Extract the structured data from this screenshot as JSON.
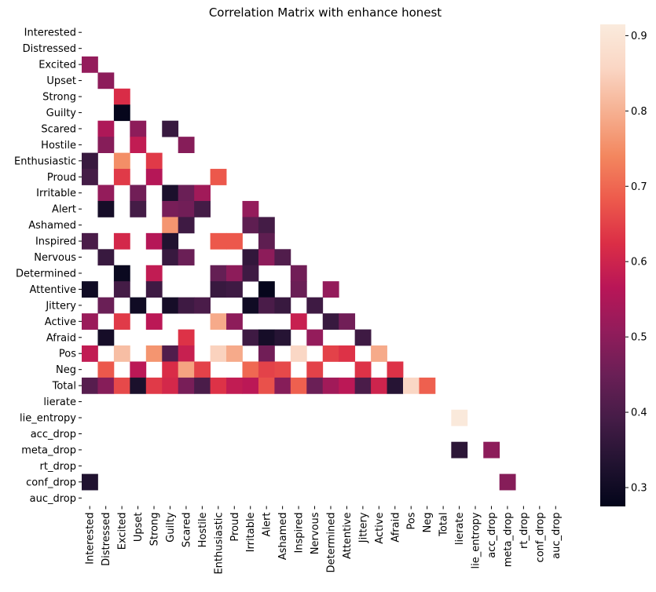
{
  "chart_data": {
    "type": "heatmap",
    "title": "Correlation Matrix with enhance honest",
    "labels": [
      "Interested",
      "Distressed",
      "Excited",
      "Upset",
      "Strong",
      "Guilty",
      "Scared",
      "Hostile",
      "Enthusiastic",
      "Proud",
      "Irritable",
      "Alert",
      "Ashamed",
      "Inspired",
      "Nervous",
      "Determined",
      "Attentive",
      "Jittery",
      "Active",
      "Afraid",
      "Pos",
      "Neg",
      "Total",
      "lierate",
      "lie_entropy",
      "acc_drop",
      "meta_drop",
      "rt_drop",
      "conf_drop",
      "auc_drop"
    ],
    "colorbar": {
      "min": 0.275,
      "max": 0.915,
      "ticks": [
        0.3,
        0.4,
        0.5,
        0.6,
        0.7,
        0.8,
        0.9
      ],
      "tick_labels": [
        "0.3",
        "0.4",
        "0.5",
        "0.6",
        "0.7",
        "0.8",
        "0.9"
      ],
      "colormap": "rocket",
      "stops": [
        "#03051a",
        "#221331",
        "#451c47",
        "#6a1f56",
        "#921c5b",
        "#b91657",
        "#db2e46",
        "#ed5a4c",
        "#f3875f",
        "#f6b091",
        "#fad6c4",
        "#faebdd"
      ]
    },
    "mask": "upper-triangle-and-diagonal",
    "cells": [
      [
        2,
        0,
        0.51
      ],
      [
        3,
        1,
        0.5
      ],
      [
        4,
        2,
        0.62
      ],
      [
        5,
        2,
        0.28
      ],
      [
        6,
        1,
        0.55
      ],
      [
        6,
        3,
        0.5
      ],
      [
        6,
        5,
        0.37
      ],
      [
        7,
        1,
        0.49
      ],
      [
        7,
        3,
        0.58
      ],
      [
        7,
        6,
        0.49
      ],
      [
        8,
        0,
        0.37
      ],
      [
        8,
        2,
        0.75
      ],
      [
        8,
        4,
        0.64
      ],
      [
        9,
        0,
        0.39
      ],
      [
        9,
        2,
        0.64
      ],
      [
        9,
        4,
        0.56
      ],
      [
        9,
        8,
        0.68
      ],
      [
        10,
        1,
        0.51
      ],
      [
        10,
        3,
        0.46
      ],
      [
        10,
        5,
        0.32
      ],
      [
        10,
        6,
        0.45
      ],
      [
        10,
        7,
        0.53
      ],
      [
        11,
        1,
        0.31
      ],
      [
        11,
        3,
        0.39
      ],
      [
        11,
        5,
        0.47
      ],
      [
        11,
        6,
        0.46
      ],
      [
        11,
        7,
        0.39
      ],
      [
        11,
        10,
        0.51
      ],
      [
        12,
        5,
        0.76
      ],
      [
        12,
        6,
        0.38
      ],
      [
        12,
        10,
        0.43
      ],
      [
        12,
        11,
        0.39
      ],
      [
        13,
        0,
        0.4
      ],
      [
        13,
        2,
        0.61
      ],
      [
        13,
        4,
        0.56
      ],
      [
        13,
        5,
        0.33
      ],
      [
        13,
        8,
        0.68
      ],
      [
        13,
        9,
        0.68
      ],
      [
        13,
        11,
        0.43
      ],
      [
        14,
        1,
        0.37
      ],
      [
        14,
        5,
        0.37
      ],
      [
        14,
        6,
        0.45
      ],
      [
        14,
        10,
        0.36
      ],
      [
        14,
        11,
        0.5
      ],
      [
        14,
        12,
        0.41
      ],
      [
        15,
        2,
        0.29
      ],
      [
        15,
        4,
        0.58
      ],
      [
        15,
        8,
        0.44
      ],
      [
        15,
        9,
        0.5
      ],
      [
        15,
        10,
        0.38
      ],
      [
        15,
        13,
        0.46
      ],
      [
        16,
        0,
        0.3
      ],
      [
        16,
        2,
        0.39
      ],
      [
        16,
        4,
        0.38
      ],
      [
        16,
        8,
        0.37
      ],
      [
        16,
        9,
        0.38
      ],
      [
        16,
        11,
        0.28
      ],
      [
        16,
        13,
        0.45
      ],
      [
        16,
        15,
        0.51
      ],
      [
        17,
        1,
        0.45
      ],
      [
        17,
        3,
        0.3
      ],
      [
        17,
        5,
        0.31
      ],
      [
        17,
        6,
        0.38
      ],
      [
        17,
        7,
        0.4
      ],
      [
        17,
        10,
        0.3
      ],
      [
        17,
        11,
        0.4
      ],
      [
        17,
        12,
        0.37
      ],
      [
        17,
        14,
        0.38
      ],
      [
        18,
        0,
        0.52
      ],
      [
        18,
        2,
        0.64
      ],
      [
        18,
        4,
        0.57
      ],
      [
        18,
        8,
        0.79
      ],
      [
        18,
        9,
        0.5
      ],
      [
        18,
        13,
        0.59
      ],
      [
        18,
        15,
        0.37
      ],
      [
        18,
        16,
        0.46
      ],
      [
        19,
        1,
        0.31
      ],
      [
        19,
        6,
        0.63
      ],
      [
        19,
        10,
        0.38
      ],
      [
        19,
        11,
        0.31
      ],
      [
        19,
        12,
        0.34
      ],
      [
        19,
        14,
        0.51
      ],
      [
        19,
        17,
        0.38
      ],
      [
        20,
        0,
        0.58
      ],
      [
        20,
        2,
        0.82
      ],
      [
        20,
        4,
        0.76
      ],
      [
        20,
        5,
        0.41
      ],
      [
        20,
        6,
        0.59
      ],
      [
        20,
        8,
        0.85
      ],
      [
        20,
        9,
        0.79
      ],
      [
        20,
        11,
        0.46
      ],
      [
        20,
        13,
        0.86
      ],
      [
        20,
        15,
        0.65
      ],
      [
        20,
        16,
        0.63
      ],
      [
        20,
        18,
        0.79
      ],
      [
        21,
        1,
        0.68
      ],
      [
        21,
        3,
        0.57
      ],
      [
        21,
        5,
        0.62
      ],
      [
        21,
        6,
        0.78
      ],
      [
        21,
        7,
        0.65
      ],
      [
        21,
        10,
        0.7
      ],
      [
        21,
        11,
        0.65
      ],
      [
        21,
        12,
        0.66
      ],
      [
        21,
        14,
        0.65
      ],
      [
        21,
        17,
        0.63
      ],
      [
        21,
        19,
        0.63
      ],
      [
        22,
        0,
        0.42
      ],
      [
        22,
        1,
        0.49
      ],
      [
        22,
        2,
        0.66
      ],
      [
        22,
        3,
        0.32
      ],
      [
        22,
        4,
        0.64
      ],
      [
        22,
        5,
        0.61
      ],
      [
        22,
        6,
        0.47
      ],
      [
        22,
        7,
        0.4
      ],
      [
        22,
        8,
        0.63
      ],
      [
        22,
        9,
        0.58
      ],
      [
        22,
        10,
        0.57
      ],
      [
        22,
        11,
        0.67
      ],
      [
        22,
        12,
        0.49
      ],
      [
        22,
        13,
        0.69
      ],
      [
        22,
        14,
        0.45
      ],
      [
        22,
        15,
        0.53
      ],
      [
        22,
        16,
        0.57
      ],
      [
        22,
        17,
        0.4
      ],
      [
        22,
        18,
        0.6
      ],
      [
        22,
        19,
        0.34
      ],
      [
        22,
        20,
        0.86
      ],
      [
        22,
        21,
        0.69
      ],
      [
        24,
        23,
        0.91
      ],
      [
        26,
        23,
        0.35
      ],
      [
        26,
        25,
        0.5
      ],
      [
        28,
        0,
        0.33
      ],
      [
        28,
        26,
        0.49
      ]
    ]
  }
}
